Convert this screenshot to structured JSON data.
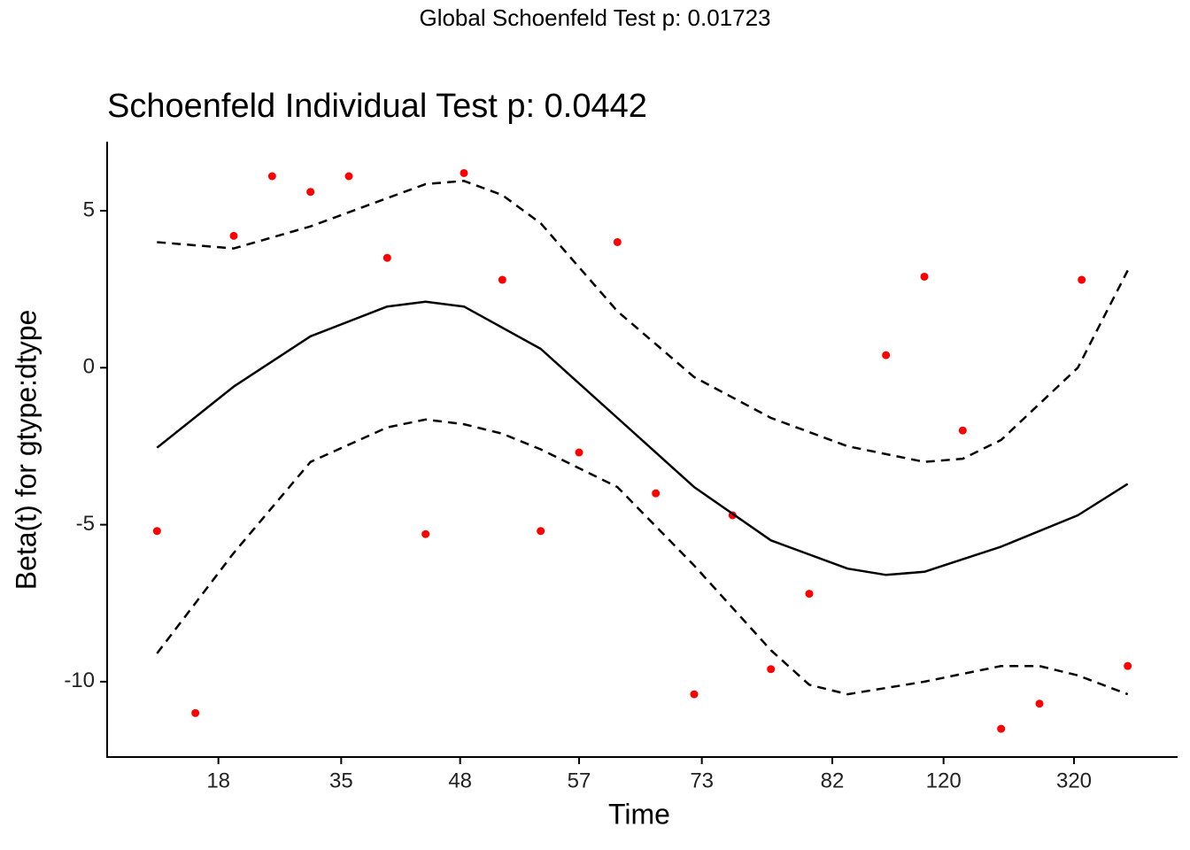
{
  "chart_data": {
    "type": "scatter",
    "suptitle": "Global Schoenfeld Test p: 0.01723",
    "title": "Schoenfeld Individual Test p: 0.0442",
    "xlabel": "Time",
    "ylabel": "Beta(t) for gtype:dtype",
    "xlim": [
      -0.3,
      27.6
    ],
    "ylim": [
      -12.4,
      7.2
    ],
    "xticks": [
      {
        "value": 2.6,
        "label": "18"
      },
      {
        "value": 5.8,
        "label": "35"
      },
      {
        "value": 8.9,
        "label": "48"
      },
      {
        "value": 12.0,
        "label": "57"
      },
      {
        "value": 15.2,
        "label": "73"
      },
      {
        "value": 18.6,
        "label": "82"
      },
      {
        "value": 21.5,
        "label": "120"
      },
      {
        "value": 24.9,
        "label": "320"
      }
    ],
    "yticks": [
      5,
      0,
      -5,
      -10
    ],
    "series": [
      {
        "kind": "points",
        "color": "#ff0000",
        "x": [
          1,
          2,
          3,
          4,
          5,
          6,
          7,
          8,
          9,
          10,
          11,
          12,
          13,
          14,
          15,
          16,
          17,
          18,
          20,
          21,
          22,
          23,
          24,
          25.1,
          26.3
        ],
        "values": [
          -5.2,
          -11.0,
          4.2,
          6.1,
          5.6,
          6.1,
          3.5,
          -5.3,
          6.2,
          2.8,
          -5.2,
          -2.7,
          4.0,
          -4.0,
          -10.4,
          -4.7,
          -9.6,
          -7.2,
          0.4,
          2.9,
          -2.0,
          -11.5,
          -10.7,
          2.8,
          -9.5
        ]
      },
      {
        "kind": "line",
        "dash": "solid",
        "color": "#000000",
        "x": [
          1,
          3,
          5,
          7,
          8,
          9,
          11,
          13,
          15,
          17,
          19,
          20,
          21,
          23,
          25,
          26.3
        ],
        "values": [
          -2.55,
          -0.6,
          1.0,
          1.95,
          2.1,
          1.95,
          0.6,
          -1.6,
          -3.8,
          -5.5,
          -6.4,
          -6.6,
          -6.5,
          -5.7,
          -4.7,
          -3.7
        ]
      },
      {
        "kind": "line",
        "dash": "dashed",
        "color": "#000000",
        "x": [
          1,
          3,
          5,
          7,
          8,
          9,
          10,
          11,
          13,
          15,
          17,
          19,
          21,
          22,
          23,
          25,
          26.3
        ],
        "values": [
          4.0,
          3.8,
          4.5,
          5.4,
          5.85,
          5.95,
          5.5,
          4.6,
          1.8,
          -0.3,
          -1.6,
          -2.5,
          -3.0,
          -2.9,
          -2.3,
          0.0,
          3.1
        ]
      },
      {
        "kind": "line",
        "dash": "dashed",
        "color": "#000000",
        "x": [
          1,
          3,
          5,
          7,
          8,
          9,
          10,
          11,
          13,
          15,
          17,
          18,
          19,
          21,
          23,
          24,
          25,
          26.3
        ],
        "values": [
          -9.1,
          -5.9,
          -3.0,
          -1.9,
          -1.65,
          -1.8,
          -2.1,
          -2.6,
          -3.8,
          -6.3,
          -9.0,
          -10.1,
          -10.4,
          -10.0,
          -9.5,
          -9.5,
          -9.8,
          -10.4
        ]
      }
    ]
  }
}
